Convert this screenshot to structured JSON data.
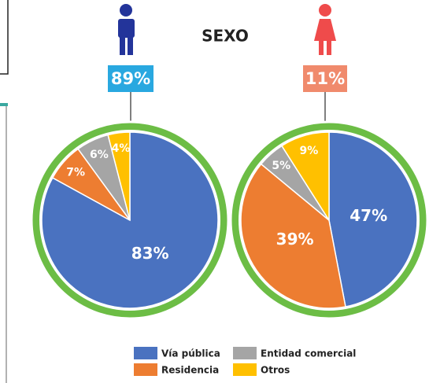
{
  "title": "SEXO",
  "sex_labels": [
    "89%",
    "11%"
  ],
  "chart_data": [
    {
      "type": "pie",
      "categories": [
        "Vía pública",
        "Residencia",
        "Entidad comercial",
        "Otros"
      ],
      "values": [
        83,
        7,
        6,
        4
      ],
      "value_labels": [
        "83%",
        "7%",
        "6%",
        "4%"
      ],
      "colors": [
        "#4a72c0",
        "#ed7d31",
        "#a5a5a5",
        "#ffc000"
      ]
    },
    {
      "type": "pie",
      "categories": [
        "Vía pública",
        "Residencia",
        "Entidad comercial",
        "Otros"
      ],
      "values": [
        47,
        39,
        5,
        9
      ],
      "value_labels": [
        "47%",
        "39%",
        "5%",
        "9%"
      ],
      "colors": [
        "#4a72c0",
        "#ed7d31",
        "#a5a5a5",
        "#ffc000"
      ]
    }
  ]
}
